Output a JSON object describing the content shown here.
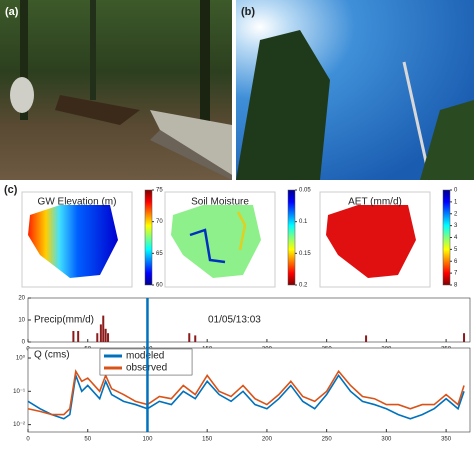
{
  "panels": {
    "a": "(a)",
    "b": "(b)",
    "c": "(c)"
  },
  "maps": [
    {
      "title": "GW Elevation (m)",
      "clim": [
        60,
        75
      ],
      "cticks": [
        60,
        65,
        70,
        75
      ],
      "reversed": false
    },
    {
      "title": "Soil Moisture",
      "clim": [
        0.05,
        0.2
      ],
      "cticks": [
        0.05,
        0.1,
        0.15,
        0.2
      ],
      "reversed": true
    },
    {
      "title": "AET (mm/d)",
      "clim": [
        0,
        8
      ],
      "cticks": [
        0,
        1,
        2,
        3,
        4,
        5,
        6,
        7,
        8
      ],
      "reversed": true
    }
  ],
  "chart_data": [
    {
      "type": "bar",
      "ylabel": "Precip(mm/d)",
      "annotation": "01/05/13:03",
      "vline": 100,
      "x": [
        38,
        42,
        58,
        61,
        63,
        65,
        67,
        135,
        140,
        283,
        365
      ],
      "values": [
        5,
        5,
        4,
        8,
        12,
        6,
        4,
        4,
        3,
        3,
        4
      ],
      "color": "#8b1a1a",
      "xlim": [
        0,
        370
      ],
      "xticks": [
        0,
        50,
        100,
        150,
        200,
        250,
        300,
        350
      ],
      "ylim": [
        0,
        20
      ],
      "yticks": [
        0,
        10,
        20
      ]
    },
    {
      "type": "line",
      "ylabel": "Q (cms)",
      "log_y": true,
      "vline": 100,
      "x": [
        0,
        10,
        20,
        30,
        35,
        40,
        45,
        50,
        60,
        65,
        70,
        80,
        90,
        100,
        110,
        120,
        130,
        140,
        150,
        160,
        170,
        180,
        190,
        200,
        210,
        220,
        230,
        240,
        250,
        260,
        270,
        280,
        290,
        300,
        310,
        320,
        330,
        340,
        350,
        360,
        365
      ],
      "series": [
        {
          "name": "modeled",
          "color": "#0072bd",
          "values": [
            0.05,
            0.03,
            0.02,
            0.015,
            0.02,
            0.3,
            0.1,
            0.15,
            0.06,
            0.2,
            0.08,
            0.05,
            0.04,
            0.03,
            0.05,
            0.04,
            0.1,
            0.06,
            0.2,
            0.08,
            0.05,
            0.1,
            0.04,
            0.03,
            0.06,
            0.15,
            0.05,
            0.03,
            0.08,
            0.3,
            0.1,
            0.05,
            0.04,
            0.03,
            0.02,
            0.015,
            0.02,
            0.03,
            0.06,
            0.03,
            0.1
          ]
        },
        {
          "name": "observed",
          "color": "#d95319",
          "values": [
            0.03,
            0.025,
            0.02,
            0.02,
            0.03,
            0.4,
            0.2,
            0.25,
            0.1,
            0.3,
            0.12,
            0.08,
            0.05,
            0.04,
            0.07,
            0.06,
            0.15,
            0.08,
            0.3,
            0.1,
            0.07,
            0.15,
            0.06,
            0.04,
            0.08,
            0.2,
            0.07,
            0.05,
            0.1,
            0.4,
            0.15,
            0.07,
            0.06,
            0.04,
            0.04,
            0.03,
            0.04,
            0.04,
            0.08,
            0.04,
            0.15
          ]
        }
      ],
      "xlim": [
        0,
        370
      ],
      "xticks": [
        0,
        50,
        100,
        150,
        200,
        250,
        300,
        350
      ],
      "ylim": [
        0.006,
        2
      ],
      "yticks": [
        {
          "value": 0.01,
          "label": "10⁻²"
        },
        {
          "value": 0.1,
          "label": "10⁻¹"
        },
        {
          "value": 1,
          "label": "10⁰"
        }
      ]
    }
  ]
}
